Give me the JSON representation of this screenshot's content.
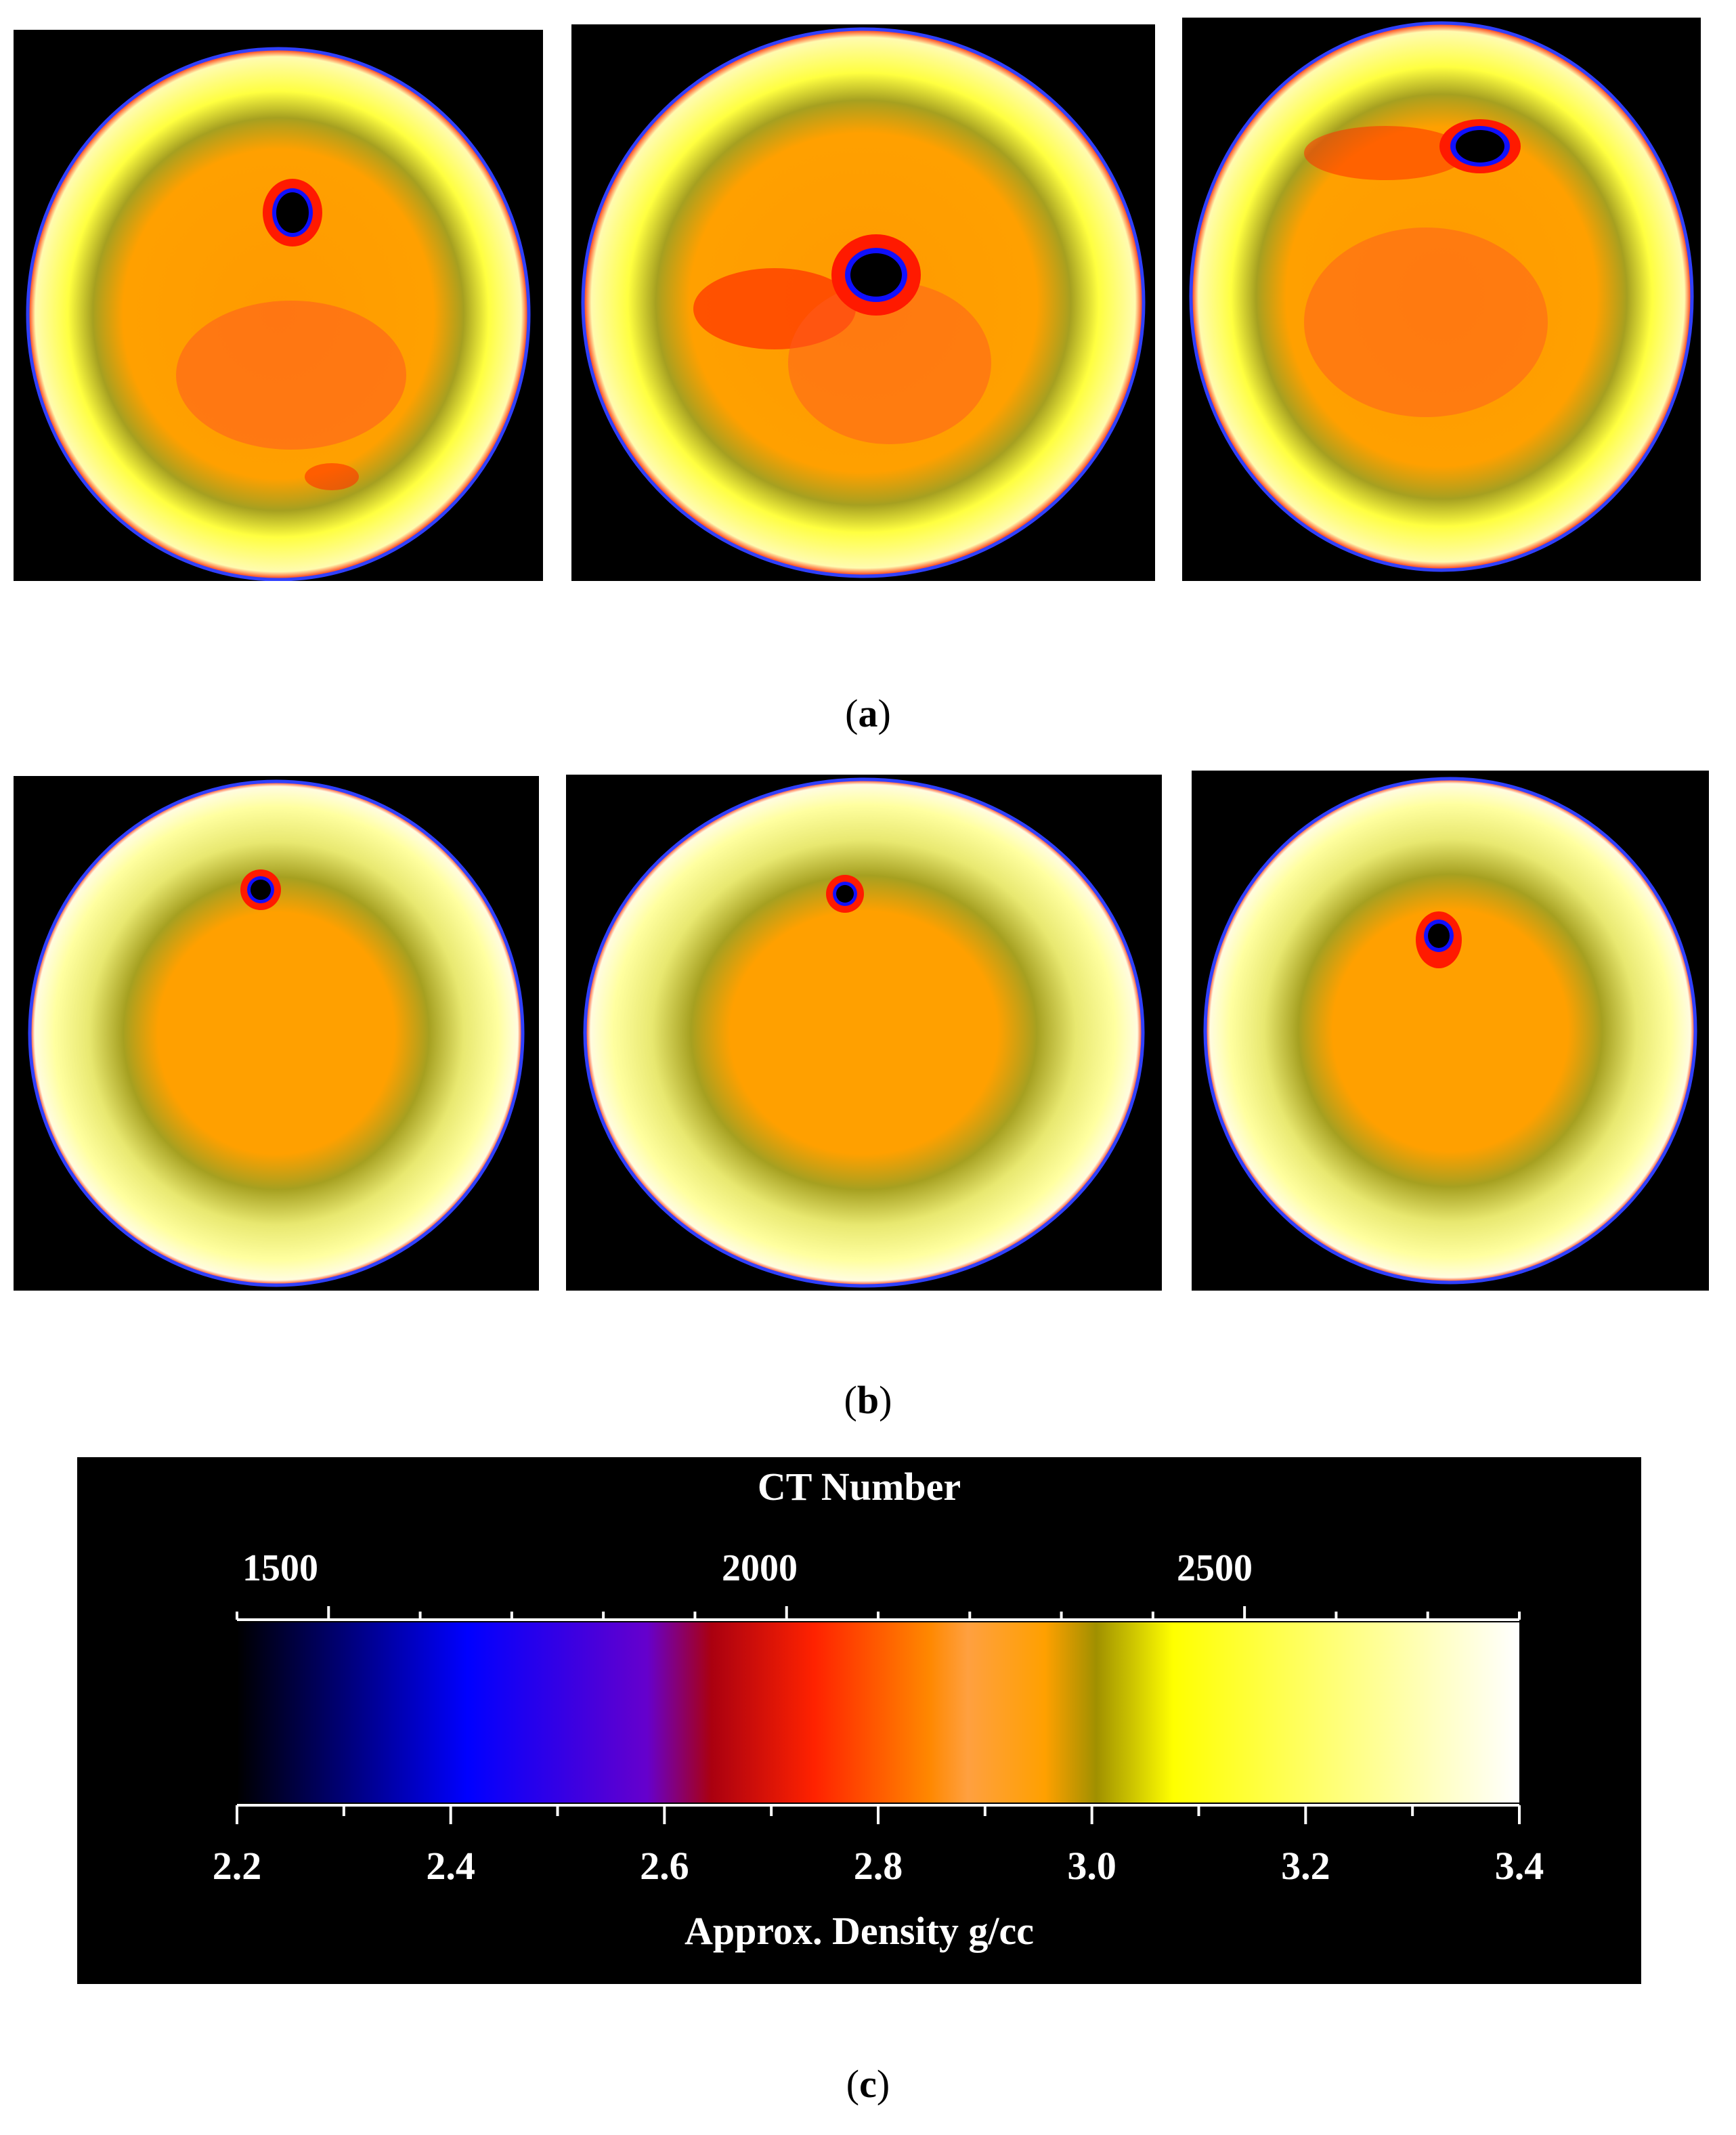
{
  "figure": {
    "captions": {
      "a": "a",
      "b": "b",
      "c": "c"
    }
  },
  "panels_a": [
    {
      "name": "ct-slice-a-1"
    },
    {
      "name": "ct-slice-a-2"
    },
    {
      "name": "ct-slice-a-3"
    }
  ],
  "panels_b": [
    {
      "name": "ct-slice-b-1"
    },
    {
      "name": "ct-slice-b-2"
    },
    {
      "name": "ct-slice-b-3"
    }
  ],
  "colorbar": {
    "title": "CT Number",
    "top_ticks": [
      "1500",
      "2000",
      "2500"
    ],
    "bottom_ticks": [
      "2.2",
      "2.4",
      "2.6",
      "2.8",
      "3.0",
      "3.2",
      "3.4"
    ],
    "bottom_label": "Approx. Density g/cc",
    "colors": [
      "#000000",
      "#0000ff",
      "#6600cc",
      "#cc0000",
      "#ff2200",
      "#ff8800",
      "#ffa040",
      "#ffa000",
      "#a09000",
      "#ffff00",
      "#ffffff"
    ]
  }
}
